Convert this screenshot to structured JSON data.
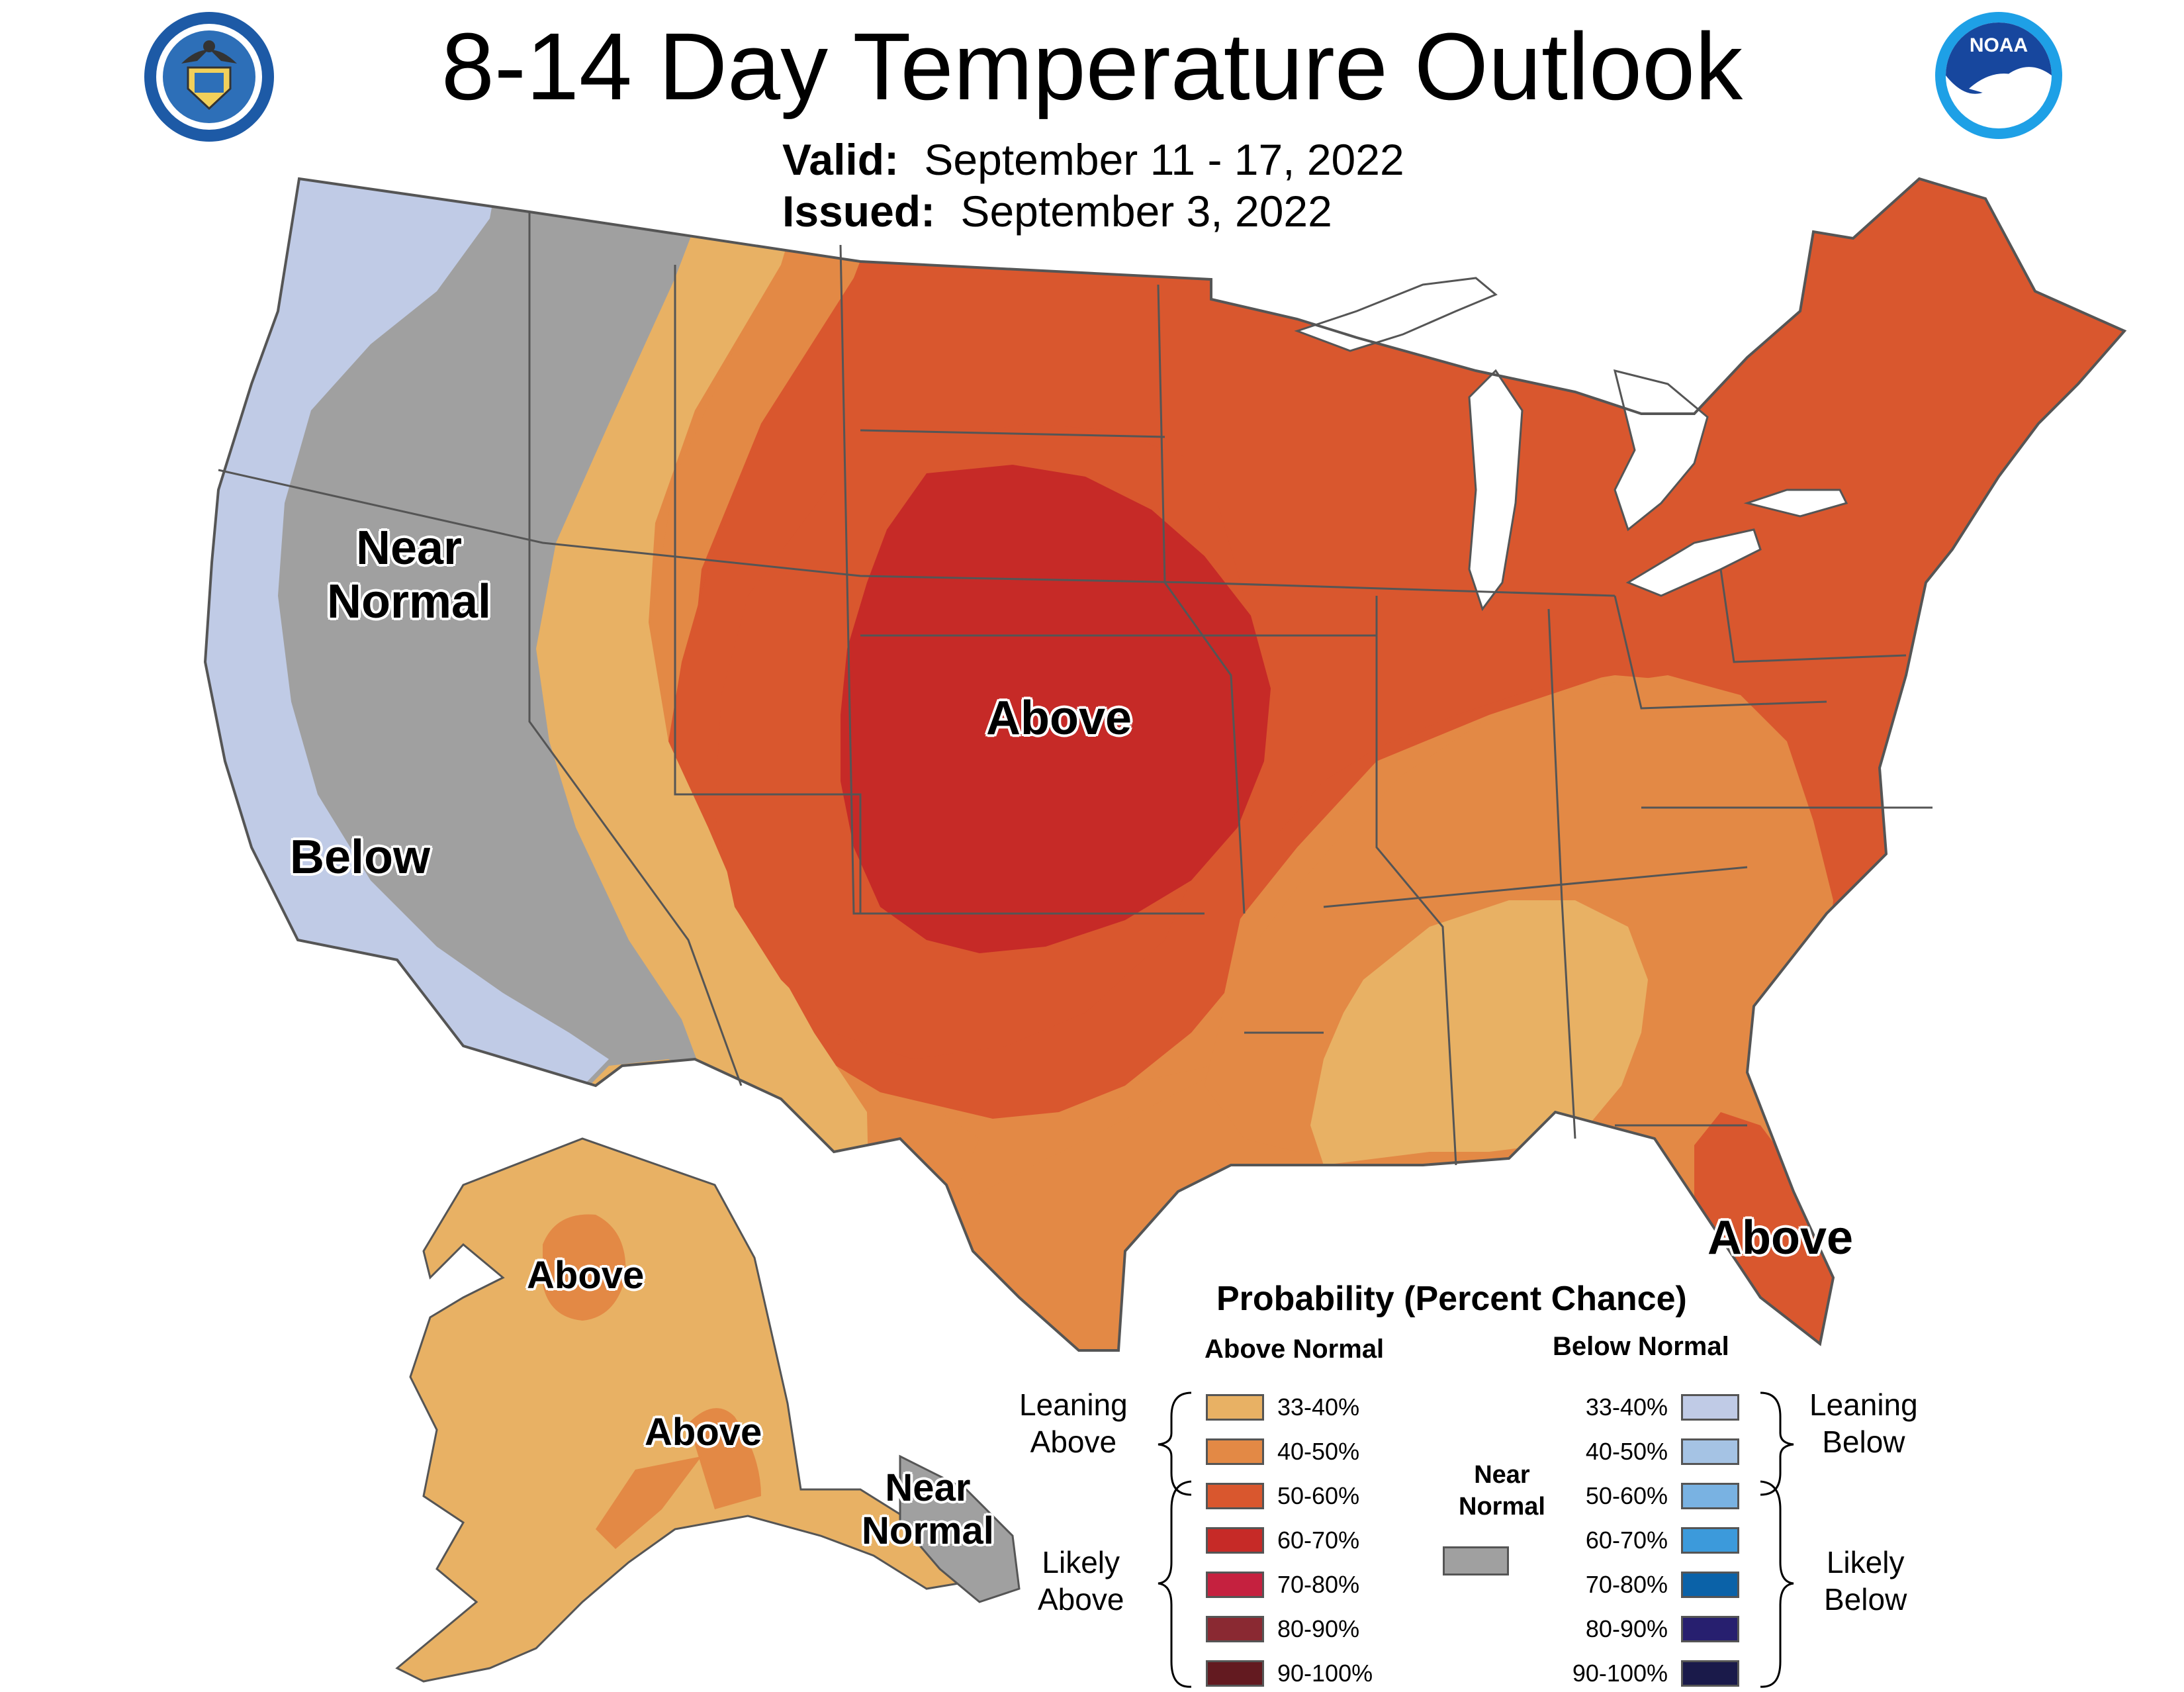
{
  "title": "8-14 Day Temperature Outlook",
  "valid": {
    "label": "Valid:",
    "value": "September 11 - 17, 2022"
  },
  "issued": {
    "label": "Issued:",
    "value": "September 3, 2022"
  },
  "logos": {
    "left": "department-of-commerce-seal",
    "right": "noaa-logo",
    "noaa_text": "NOAA"
  },
  "map_labels": {
    "near_normal_west": [
      "Near",
      "Normal"
    ],
    "above_central": "Above",
    "below_west": "Below",
    "above_florida": "Above",
    "above_alaska_north": "Above",
    "above_alaska_south": "Above",
    "near_normal_alaska": [
      "Near",
      "Normal"
    ]
  },
  "colors": {
    "above_33_40": "#e8b164",
    "above_40_50": "#e38945",
    "above_50_60": "#d9572e",
    "above_60_70": "#c62a27",
    "above_70_80": "#c5213f",
    "above_80_90": "#8a2932",
    "above_90_100": "#631a20",
    "near_normal": "#a0a0a0",
    "below_33_40": "#c0cbe6",
    "below_40_50": "#a5c3e4",
    "below_50_60": "#79b2e2",
    "below_60_70": "#3c9adb",
    "below_70_80": "#0b62a8",
    "below_80_90": "#271f6f",
    "below_90_100": "#1a1a4a",
    "state_line": "#555555",
    "outline": "#6e6e6e",
    "lake": "#ffffff"
  },
  "legend": {
    "title": "Probability (Percent Chance)",
    "above_header": "Above Normal",
    "below_header": "Below Normal",
    "leaning_above": [
      "Leaning",
      "Above"
    ],
    "likely_above": [
      "Likely",
      "Above"
    ],
    "leaning_below": [
      "Leaning",
      "Below"
    ],
    "likely_below": [
      "Likely",
      "Below"
    ],
    "near_normal": [
      "Near",
      "Normal"
    ],
    "above_ranges": [
      "33-40%",
      "40-50%",
      "50-60%",
      "60-70%",
      "70-80%",
      "80-90%",
      "90-100%"
    ],
    "below_ranges": [
      "33-40%",
      "40-50%",
      "50-60%",
      "60-70%",
      "70-80%",
      "80-90%",
      "90-100%"
    ]
  }
}
